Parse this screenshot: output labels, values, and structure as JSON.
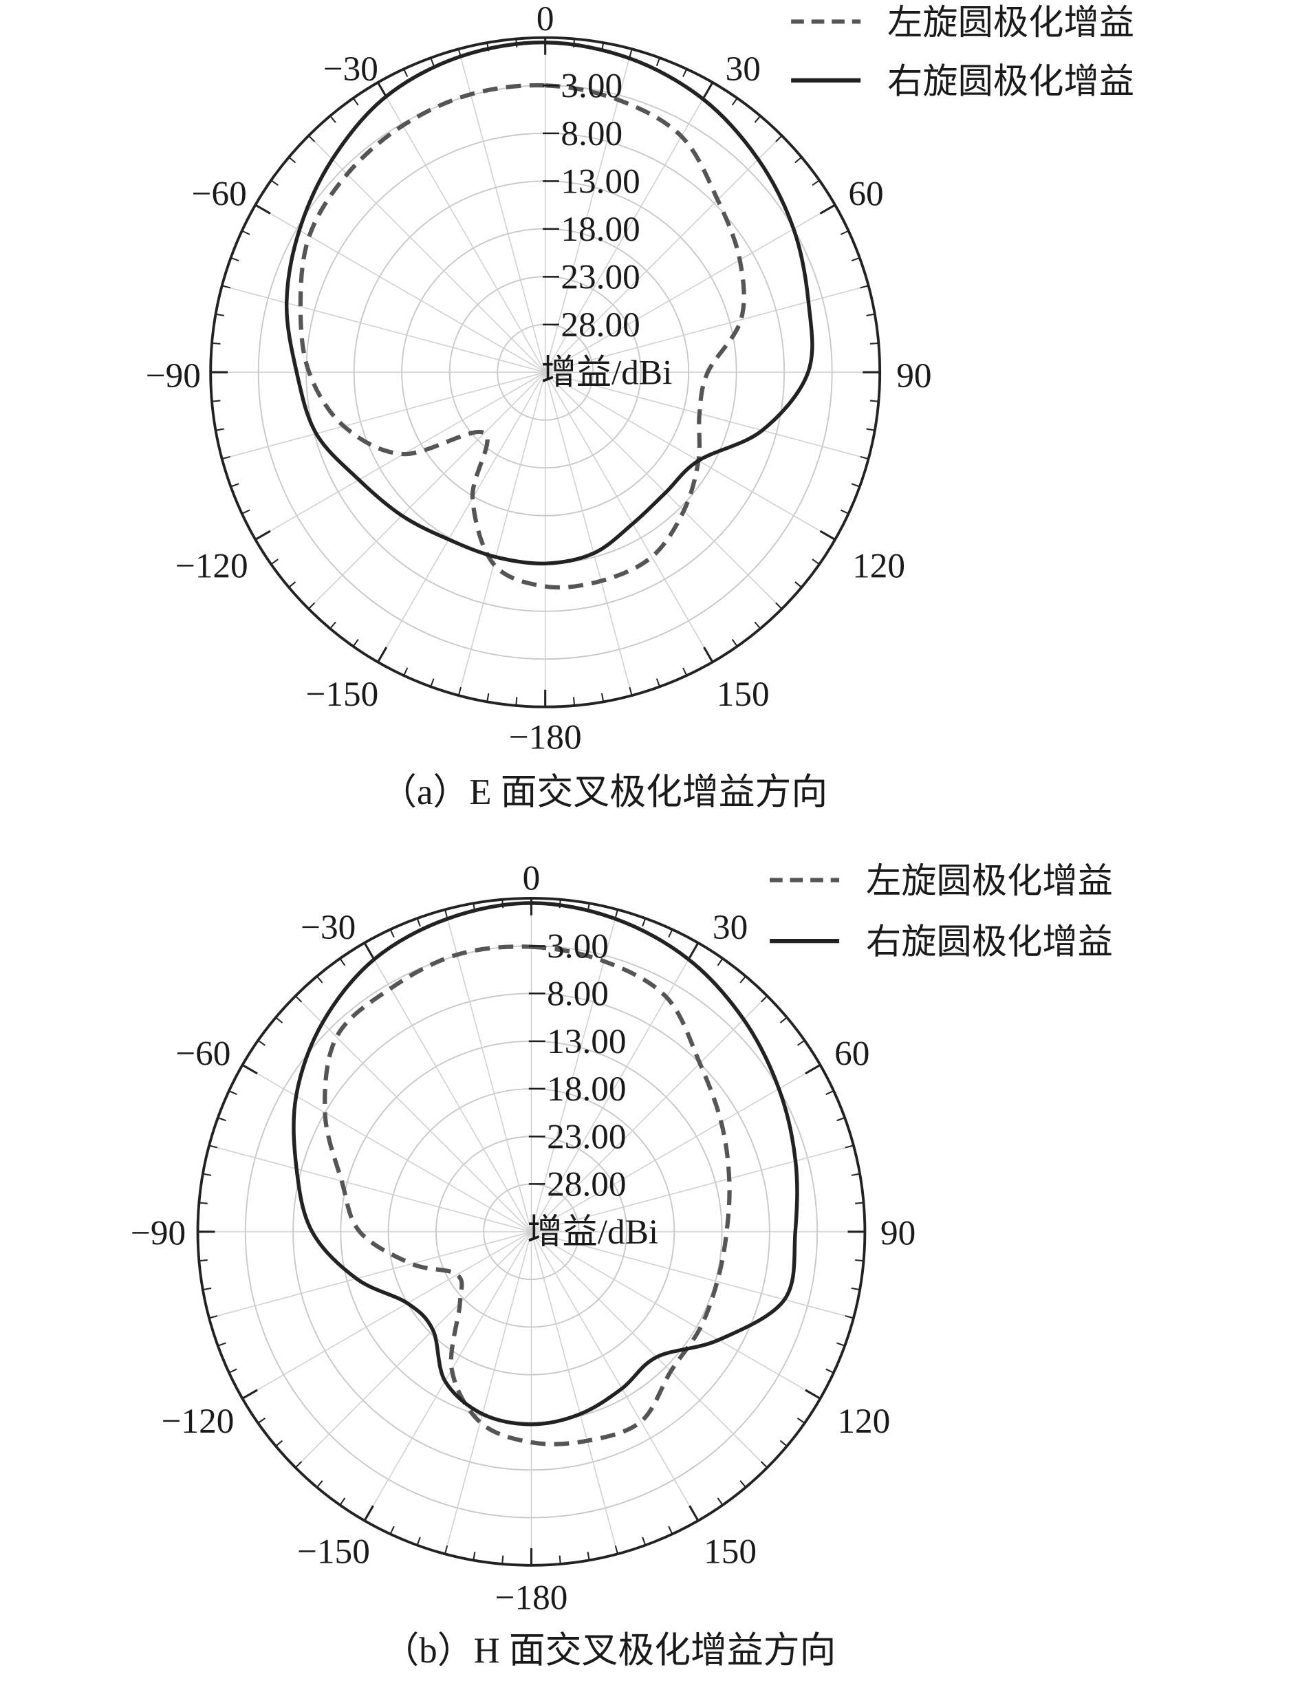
{
  "chart_data": [
    {
      "type": "polar-line",
      "caption": "（a）E 面交叉极化增益方向",
      "radial_label": "增益/dBi",
      "radial_ticks": [
        "−3.00",
        "−8.00",
        "−13.00",
        "−18.00",
        "−23.00",
        "−28.00"
      ],
      "radial_tick_values": [
        -3,
        -8,
        -13,
        -18,
        -23,
        -28
      ],
      "radial_range": [
        -33,
        2
      ],
      "angle_ticks": [
        "0",
        "30",
        "60",
        "90",
        "120",
        "150",
        "−180",
        "−150",
        "−120",
        "−90",
        "−60",
        "−30"
      ],
      "angle_tick_values": [
        0,
        30,
        60,
        90,
        120,
        150,
        180,
        -150,
        -120,
        -90,
        -60,
        -30
      ],
      "angles_deg": [
        0,
        15,
        30,
        45,
        60,
        75,
        90,
        105,
        120,
        135,
        150,
        165,
        180,
        -165,
        -150,
        -135,
        -120,
        -105,
        -90,
        -75,
        -60,
        -45,
        -30,
        -15
      ],
      "series": [
        {
          "name": "左旋圆极化增益",
          "style": "dashed",
          "color": "#555555",
          "values": [
            -3,
            -3.5,
            -4.5,
            -7.5,
            -9.5,
            -11.8,
            -16,
            -16.3,
            -14.5,
            -12.5,
            -10.7,
            -10.4,
            -10.6,
            -12.2,
            -17.8,
            -24,
            -15.9,
            -11.2,
            -8.3,
            -6.5,
            -4.5,
            -3.7,
            -3.2,
            -2.9
          ]
        },
        {
          "name": "右旋圆极化增益",
          "style": "solid",
          "color": "#222222",
          "values": [
            1.5,
            1,
            0,
            -1.5,
            -3,
            -4.5,
            -5.5,
            -9.5,
            -14.5,
            -15.2,
            -14.7,
            -13.4,
            -13,
            -13,
            -12.8,
            -11.8,
            -10.5,
            -8.2,
            -7,
            -5,
            -3.3,
            -1.5,
            0.3,
            1.2
          ]
        }
      ]
    },
    {
      "type": "polar-line",
      "caption": "（b）H 面交叉极化增益方向",
      "radial_label": "增益/dBi",
      "radial_ticks": [
        "−3.00",
        "−8.00",
        "−13.00",
        "−18.00",
        "−23.00",
        "−28.00"
      ],
      "radial_tick_values": [
        -3,
        -8,
        -13,
        -18,
        -23,
        -28
      ],
      "radial_range": [
        -33,
        2
      ],
      "angle_ticks": [
        "0",
        "30",
        "60",
        "90",
        "120",
        "150",
        "−180",
        "−150",
        "−120",
        "−90",
        "−60",
        "−30"
      ],
      "angle_tick_values": [
        0,
        30,
        60,
        90,
        120,
        150,
        180,
        -150,
        -120,
        -90,
        -60,
        -30
      ],
      "angles_deg": [
        0,
        15,
        30,
        45,
        60,
        75,
        90,
        105,
        120,
        135,
        150,
        165,
        180,
        -165,
        -150,
        -135,
        -120,
        -105,
        -90,
        -75,
        -60,
        -45,
        -30,
        -15
      ],
      "series": [
        {
          "name": "左旋圆极化增益",
          "style": "dashed",
          "color": "#555555",
          "values": [
            -3.1,
            -3.6,
            -4.6,
            -8,
            -10,
            -11.5,
            -12.5,
            -12.8,
            -12.6,
            -12.3,
            -10,
            -10.3,
            -10.9,
            -12.3,
            -16.3,
            -22.4,
            -24,
            -20,
            -15,
            -12.4,
            -8,
            -4.1,
            -3.5,
            -2.9
          ]
        },
        {
          "name": "右旋圆极化增益",
          "style": "solid",
          "color": "#222222",
          "values": [
            1.5,
            1,
            0,
            -1.5,
            -3,
            -4.3,
            -5.3,
            -5.5,
            -10.3,
            -14.4,
            -14,
            -13.2,
            -12.8,
            -13.2,
            -14.9,
            -18.4,
            -18,
            -14,
            -10,
            -7.5,
            -4.5,
            -2,
            0,
            1
          ]
        }
      ]
    }
  ]
}
